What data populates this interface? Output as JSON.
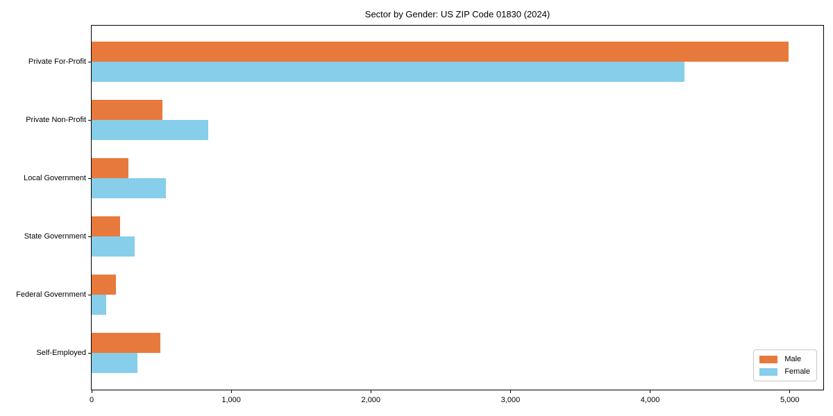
{
  "chart_data": {
    "type": "bar",
    "orientation": "horizontal",
    "title": "Sector by Gender: US ZIP Code 01830 (2024)",
    "categories": [
      "Private For-Profit",
      "Private Non-Profit",
      "Local Government",
      "State Government",
      "Federal Government",
      "Self-Employed"
    ],
    "series": [
      {
        "name": "Male",
        "color": "#E8793D",
        "values": [
          4990,
          505,
          265,
          205,
          175,
          490
        ]
      },
      {
        "name": "Female",
        "color": "#87CEEB",
        "values": [
          4245,
          835,
          530,
          310,
          105,
          330
        ]
      }
    ],
    "xlim": [
      0,
      5250
    ],
    "x_ticks": [
      0,
      1000,
      2000,
      3000,
      4000,
      5000
    ],
    "x_tick_labels": [
      "0",
      "1,000",
      "2,000",
      "3,000",
      "4,000",
      "5,000"
    ],
    "xlabel": "",
    "ylabel": "",
    "grid": false,
    "legend": {
      "position": "lower right",
      "entries": [
        "Male",
        "Female"
      ]
    }
  },
  "colors": {
    "male": "#E8793D",
    "female": "#87CEEB",
    "axis": "#000000",
    "legend_border": "#c7c7c7",
    "background": "#ffffff"
  }
}
